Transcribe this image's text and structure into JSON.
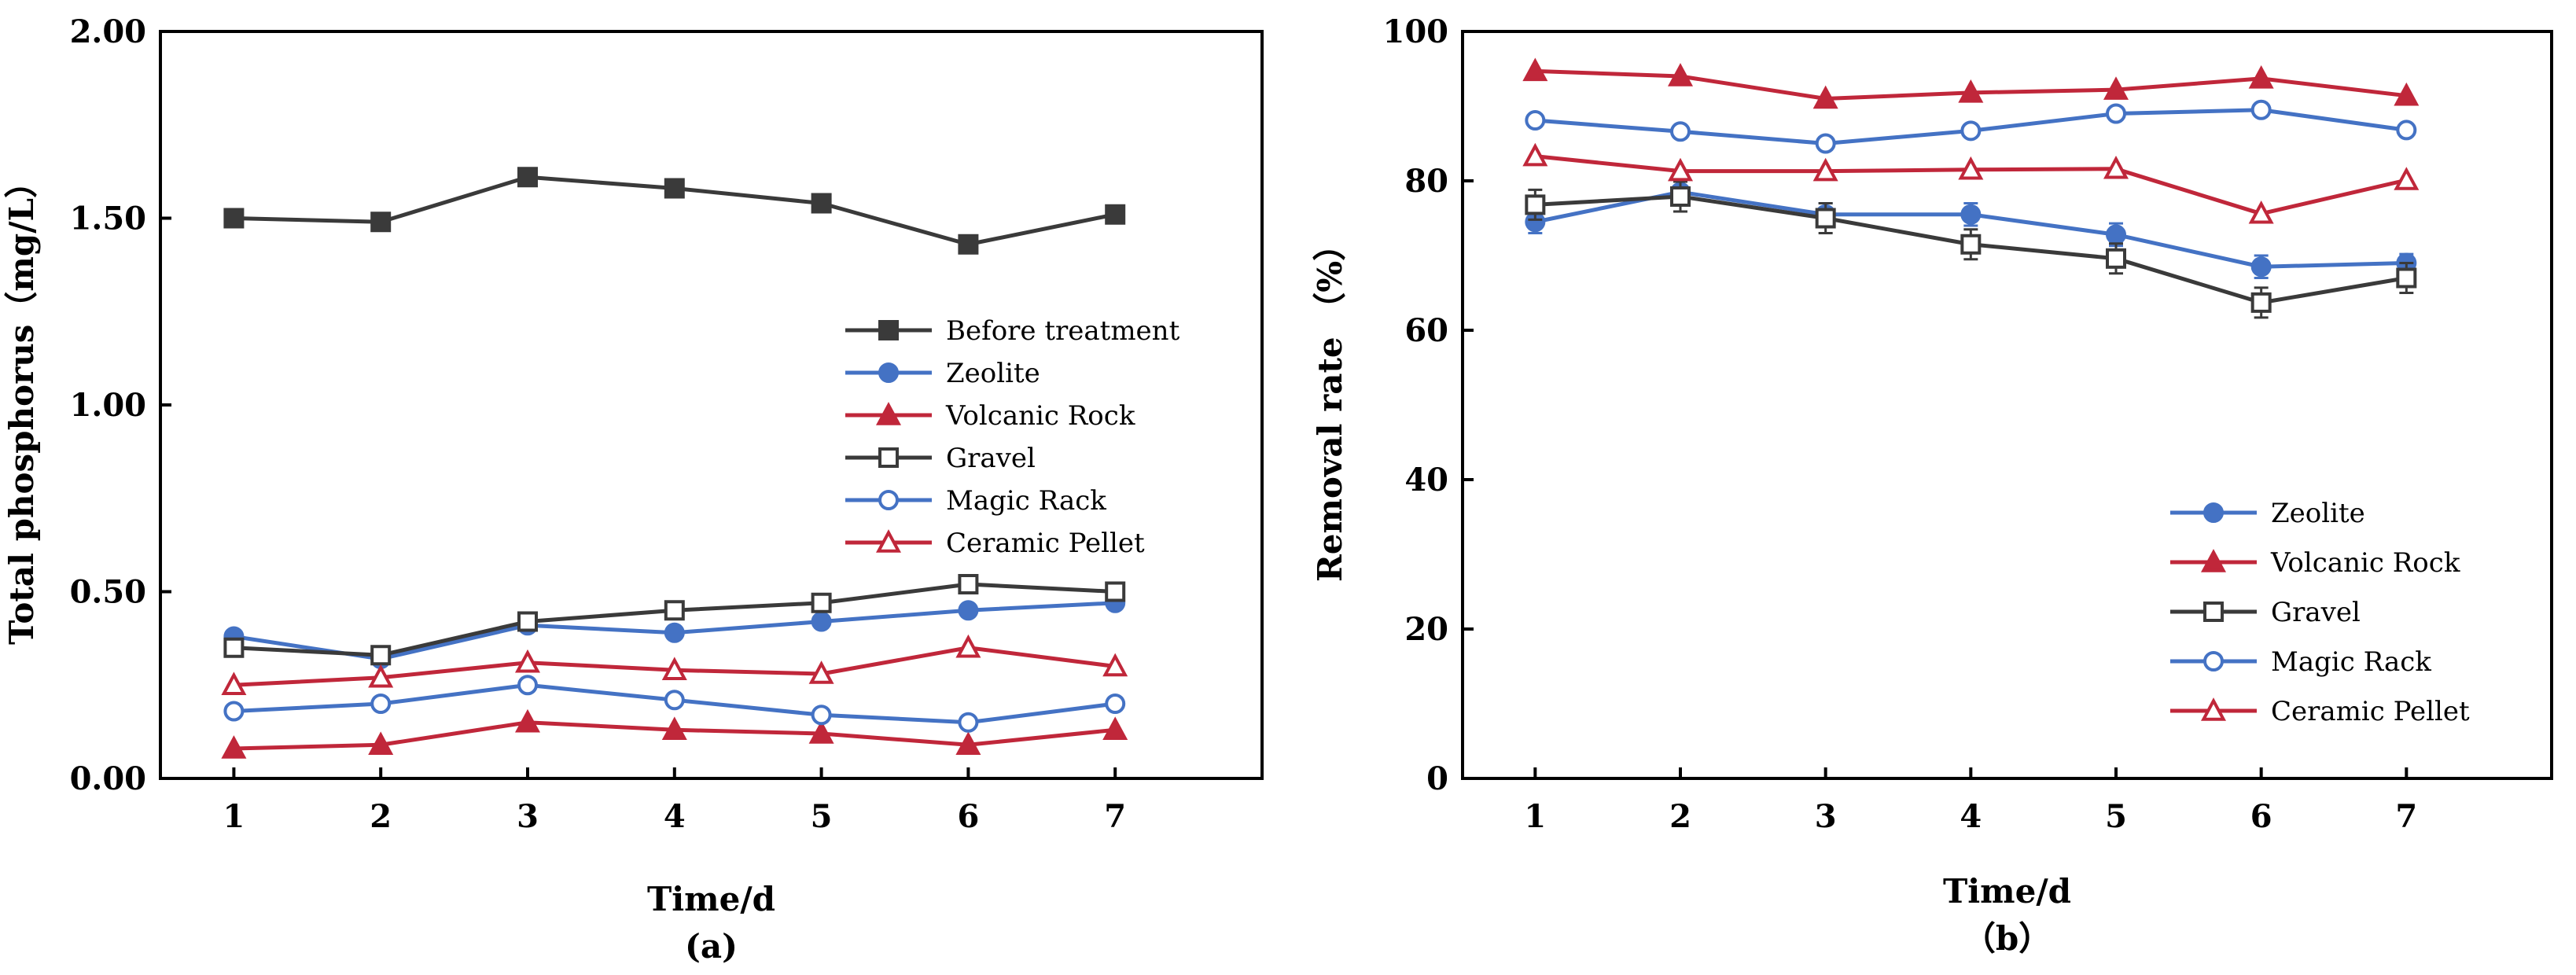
{
  "chart_data": [
    {
      "type": "line",
      "panel_label": "(a)",
      "xlabel": "Time/d",
      "ylabel": "Total phosphorus（mg/L）",
      "x": [
        1,
        2,
        3,
        4,
        5,
        6,
        7
      ],
      "xticks": [
        "1",
        "2",
        "3",
        "4",
        "5",
        "6",
        "7"
      ],
      "ylim": [
        0,
        2.0
      ],
      "yticks": [
        "0.00",
        "0.50",
        "1.00",
        "1.50",
        "2.00"
      ],
      "grid": false,
      "legend_position": "center-right",
      "series": [
        {
          "name": "Before treatment",
          "color": "#3a3a3a",
          "marker": "square-filled",
          "values": [
            1.5,
            1.49,
            1.61,
            1.58,
            1.54,
            1.43,
            1.51
          ]
        },
        {
          "name": "Zeolite",
          "color": "#4472c4",
          "marker": "circle-filled",
          "values": [
            0.38,
            0.32,
            0.41,
            0.39,
            0.42,
            0.45,
            0.47
          ]
        },
        {
          "name": "Volcanic Rock",
          "color": "#c0273a",
          "marker": "triangle-filled",
          "values": [
            0.08,
            0.09,
            0.15,
            0.13,
            0.12,
            0.09,
            0.13
          ]
        },
        {
          "name": "Gravel",
          "color": "#3a3a3a",
          "marker": "square-open",
          "values": [
            0.35,
            0.33,
            0.42,
            0.45,
            0.47,
            0.52,
            0.5
          ]
        },
        {
          "name": "Magic Rack",
          "color": "#4472c4",
          "marker": "circle-open",
          "values": [
            0.18,
            0.2,
            0.25,
            0.21,
            0.17,
            0.15,
            0.2
          ]
        },
        {
          "name": "Ceramic Pellet",
          "color": "#c0273a",
          "marker": "triangle-open",
          "values": [
            0.25,
            0.27,
            0.31,
            0.29,
            0.28,
            0.35,
            0.3
          ]
        }
      ]
    },
    {
      "type": "line",
      "panel_label": "（b）",
      "xlabel": "Time/d",
      "ylabel": "Removal rate （%）",
      "x": [
        1,
        2,
        3,
        4,
        5,
        6,
        7
      ],
      "xticks": [
        "1",
        "2",
        "3",
        "4",
        "5",
        "6",
        "7"
      ],
      "ylim": [
        0,
        100
      ],
      "yticks": [
        "0",
        "20",
        "40",
        "60",
        "80",
        "100"
      ],
      "grid": false,
      "legend_position": "bottom-right",
      "series": [
        {
          "name": "Zeolite",
          "color": "#4472c4",
          "marker": "circle-filled",
          "values": [
            74.5,
            78.5,
            75.5,
            75.5,
            72.8,
            68.5,
            69.0
          ],
          "errors": [
            1.5,
            1.5,
            1.5,
            1.5,
            1.5,
            1.5,
            1.2
          ]
        },
        {
          "name": "Volcanic Rock",
          "color": "#c0273a",
          "marker": "triangle-filled",
          "values": [
            94.7,
            94.0,
            91.0,
            91.8,
            92.2,
            93.7,
            91.4
          ]
        },
        {
          "name": "Gravel",
          "color": "#3a3a3a",
          "marker": "square-open",
          "values": [
            76.8,
            77.9,
            75.0,
            71.5,
            69.6,
            63.7,
            67.0
          ],
          "errors": [
            2.0,
            2.0,
            2.0,
            2.0,
            2.0,
            2.0,
            2.0
          ]
        },
        {
          "name": "Magic Rack",
          "color": "#4472c4",
          "marker": "circle-open",
          "values": [
            88.1,
            86.6,
            85.0,
            86.7,
            89.0,
            89.5,
            86.8
          ]
        },
        {
          "name": "Ceramic Pellet",
          "color": "#c0273a",
          "marker": "triangle-open",
          "values": [
            83.3,
            81.3,
            81.3,
            81.5,
            81.6,
            75.6,
            80.1
          ]
        }
      ]
    }
  ]
}
